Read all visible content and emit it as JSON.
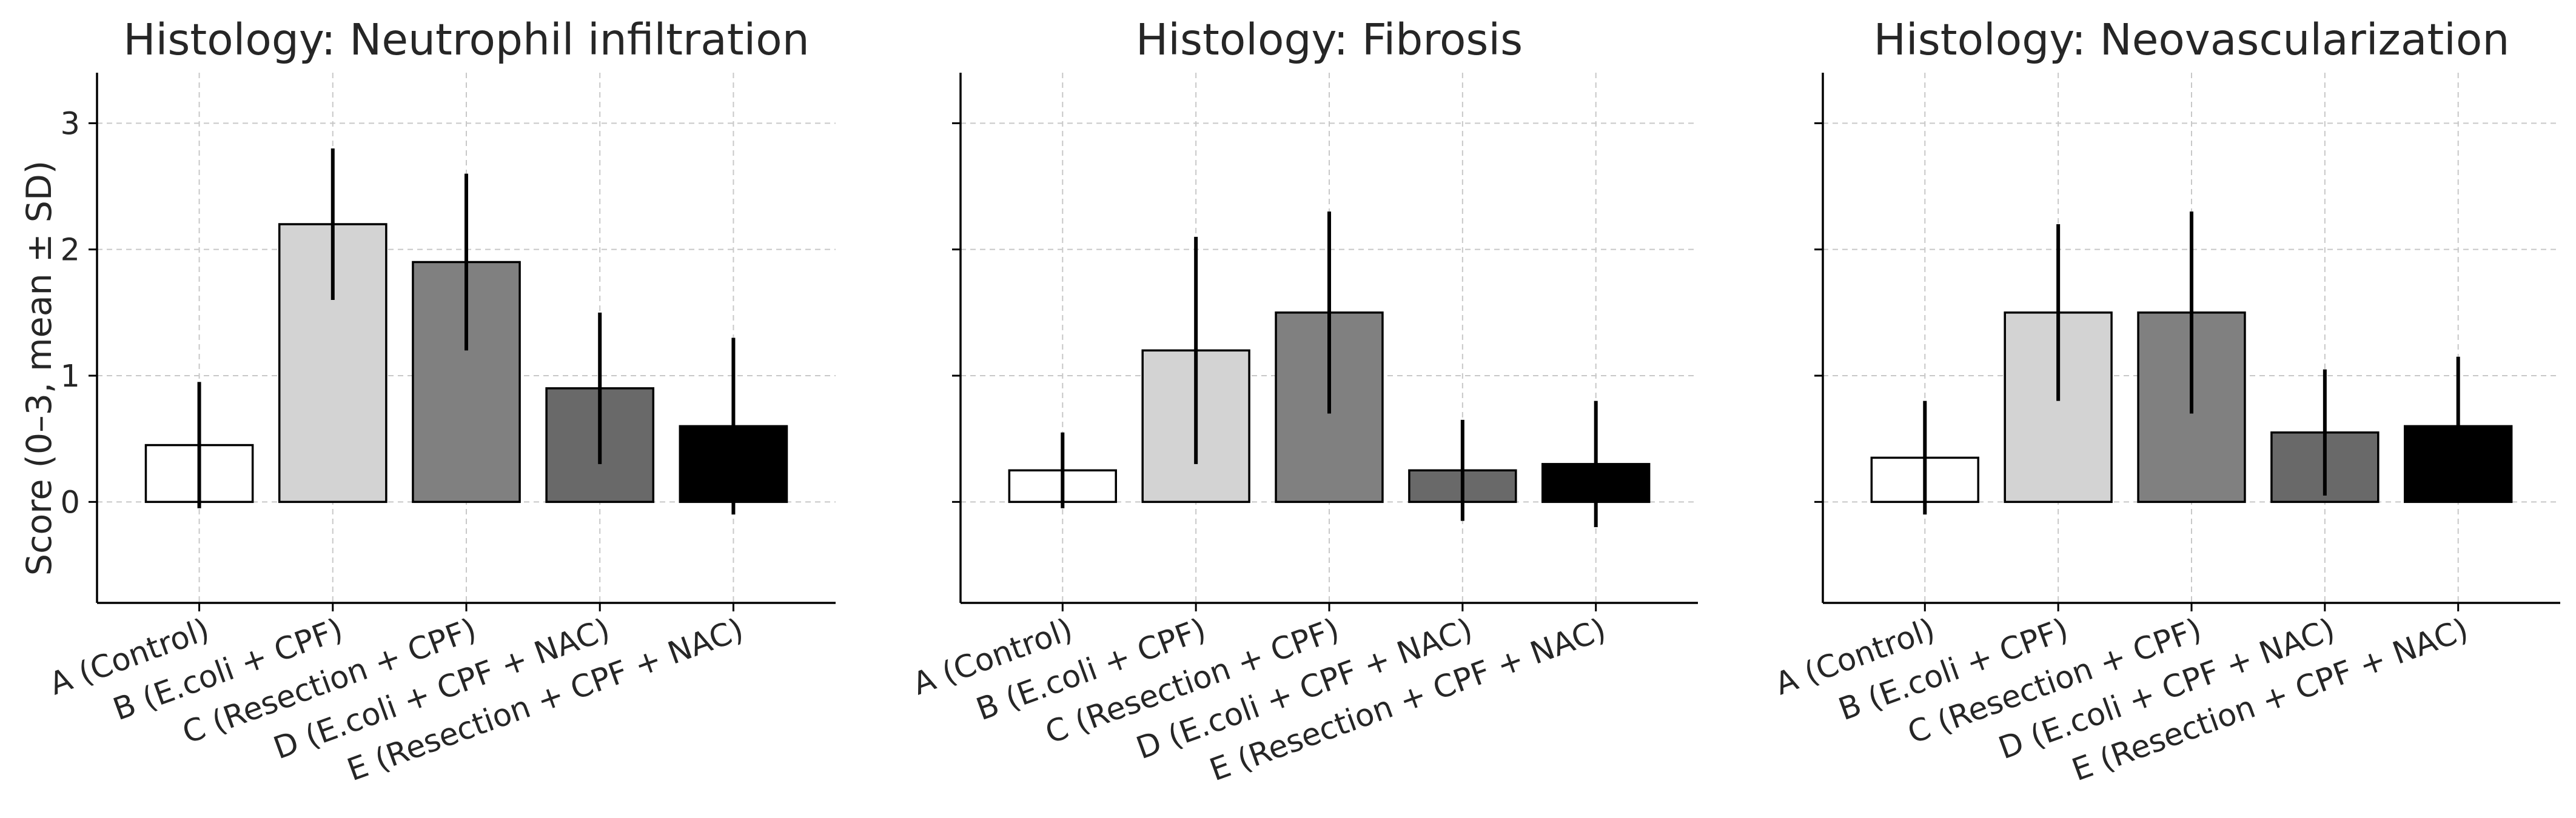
{
  "chart_data": [
    {
      "type": "bar",
      "title": "Histology: Neutrophil infiltration",
      "ylabel": "Score (0–3, mean ± SD)",
      "xlabel": "",
      "ylim": [
        -0.8,
        3.4
      ],
      "yticks": [
        0,
        1,
        2,
        3
      ],
      "grid": true,
      "categories": [
        "A (Control)",
        "B (E.coli + CPF)",
        "C (Resection + CPF)",
        "D (E.coli + CPF + NAC)",
        "E (Resection + CPF + NAC)"
      ],
      "values": [
        0.45,
        2.2,
        1.9,
        0.9,
        0.6
      ],
      "errors": [
        0.5,
        0.6,
        0.7,
        0.6,
        0.7
      ],
      "colors": [
        "#ffffff",
        "#d3d3d3",
        "#808080",
        "#696969",
        "#000000"
      ]
    },
    {
      "type": "bar",
      "title": "Histology: Fibrosis",
      "ylabel": "",
      "xlabel": "",
      "ylim": [
        -0.8,
        3.4
      ],
      "yticks": [
        0,
        1,
        2,
        3
      ],
      "grid": true,
      "categories": [
        "A (Control)",
        "B (E.coli + CPF)",
        "C (Resection + CPF)",
        "D (E.coli + CPF + NAC)",
        "E (Resection + CPF + NAC)"
      ],
      "values": [
        0.25,
        1.2,
        1.5,
        0.25,
        0.3
      ],
      "errors": [
        0.3,
        0.9,
        0.8,
        0.4,
        0.5
      ],
      "colors": [
        "#ffffff",
        "#d3d3d3",
        "#808080",
        "#696969",
        "#000000"
      ]
    },
    {
      "type": "bar",
      "title": "Histology: Neovascularization",
      "ylabel": "",
      "xlabel": "",
      "ylim": [
        -0.8,
        3.4
      ],
      "yticks": [
        0,
        1,
        2,
        3
      ],
      "grid": true,
      "categories": [
        "A (Control)",
        "B (E.coli + CPF)",
        "C (Resection + CPF)",
        "D (E.coli + CPF + NAC)",
        "E (Resection + CPF + NAC)"
      ],
      "values": [
        0.35,
        1.5,
        1.5,
        0.55,
        0.6
      ],
      "errors": [
        0.45,
        0.7,
        0.8,
        0.5,
        0.55
      ],
      "colors": [
        "#ffffff",
        "#d3d3d3",
        "#808080",
        "#696969",
        "#000000"
      ]
    }
  ]
}
